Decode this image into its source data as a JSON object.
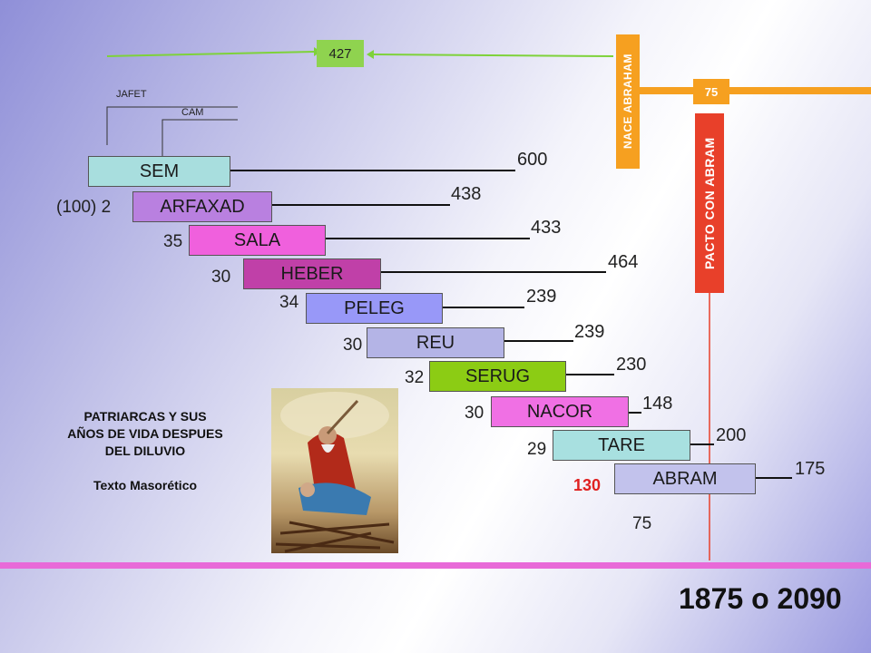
{
  "top_box": {
    "value": "427",
    "color": "#8fd34f"
  },
  "labels": {
    "jafet": "JAFET",
    "cam": "CAM"
  },
  "nace_abraham": {
    "text": "NACE ABRAHAM",
    "color": "#f6a020"
  },
  "pacto": {
    "text": "PACTO CON ABRAM",
    "color": "#e8402a",
    "marker": "75"
  },
  "patriarchs": [
    {
      "name": "SEM",
      "offset": "",
      "years": "600",
      "color": "#a8dede"
    },
    {
      "name": "ARFAXAD",
      "offset": "(100) 2",
      "years": "438",
      "color": "#b980e0"
    },
    {
      "name": "SALA",
      "offset": "35",
      "years": "433",
      "color": "#f060dd"
    },
    {
      "name": "HEBER",
      "offset": "30",
      "years": "464",
      "color": "#c040a8"
    },
    {
      "name": "PELEG",
      "offset": "34",
      "years": "239",
      "color": "#9898f8"
    },
    {
      "name": "REU",
      "offset": "30",
      "years": "239",
      "color": "#b4b4e6"
    },
    {
      "name": "SERUG",
      "offset": "32",
      "years": "230",
      "color": "#8ccc14"
    },
    {
      "name": "NACOR",
      "offset": "30",
      "years": "148",
      "color": "#f070e4"
    },
    {
      "name": "TARE",
      "offset": "29",
      "years": "200",
      "color": "#a8e0e0"
    },
    {
      "name": "ABRAM",
      "offset": "130",
      "years": "175",
      "color": "#c2c2ec"
    }
  ],
  "abram_below": "75",
  "caption": {
    "line1": "PATRIARCAS Y SUS",
    "line2": "AÑOS DE VIDA DESPUES",
    "line3": "DEL DILUVIO",
    "line4": "Texto Masorético"
  },
  "total": "1875 o 2090",
  "icons": {
    "illustration": "abraham-isaac-painting"
  }
}
